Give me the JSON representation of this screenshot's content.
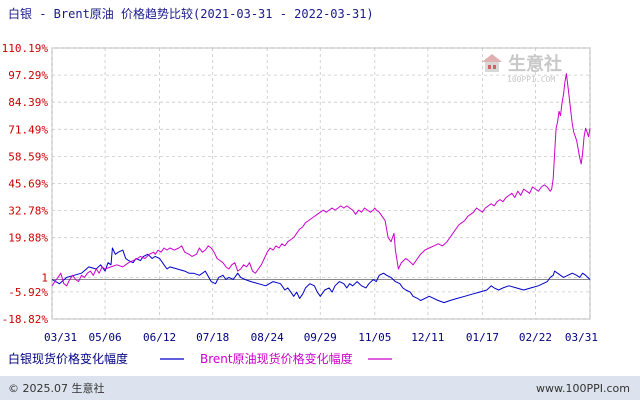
{
  "header": {
    "title": "白银 - Brent原油 价格趋势比较(2021-03-31 - 2022-03-31)"
  },
  "watermark": {
    "name": "生意社",
    "url": "100PPI.COM"
  },
  "footer": {
    "copyright": "© 2025.07 生意社",
    "site": "www.100PPI.com"
  },
  "colors": {
    "silver": "#0000cc",
    "brent": "#cc00cc",
    "axis_labels": "#cc0000",
    "date_labels": "#000080",
    "grid": "#c8c8c8",
    "baseline": "#888888",
    "footer_bar": "#dde3ee"
  },
  "chart_data": {
    "type": "line",
    "title": "白银 - Brent原油 价格趋势比较(2021-03-31 - 2022-03-31)",
    "ylim": [
      -18.82,
      110.19
    ],
    "yticks": [
      "110.19%",
      "97.29%",
      "84.39%",
      "71.49%",
      "58.59%",
      "45.69%",
      "32.78%",
      "19.88%",
      "1",
      "-5.92%",
      "-18.82%"
    ],
    "ytick_values": [
      110.19,
      97.29,
      84.39,
      71.49,
      58.59,
      45.69,
      32.78,
      19.88,
      1,
      -5.92,
      -18.82
    ],
    "xticks": [
      "03/31",
      "05/06",
      "06/12",
      "07/18",
      "08/24",
      "09/29",
      "11/05",
      "12/11",
      "01/17",
      "02/22",
      "03/31"
    ],
    "xticks_day": [
      0,
      36,
      73,
      109,
      146,
      182,
      219,
      255,
      292,
      328,
      365
    ],
    "grid": true,
    "legend_position": "bottom",
    "series": [
      {
        "name": "白银现货价格变化幅度",
        "color": "#0000cc",
        "points": [
          [
            0,
            0
          ],
          [
            5,
            -2
          ],
          [
            10,
            1
          ],
          [
            15,
            2
          ],
          [
            20,
            3
          ],
          [
            25,
            6
          ],
          [
            30,
            5
          ],
          [
            33,
            7
          ],
          [
            36,
            4
          ],
          [
            38,
            8
          ],
          [
            40,
            7
          ],
          [
            41,
            15
          ],
          [
            43,
            12
          ],
          [
            45,
            13
          ],
          [
            48,
            14
          ],
          [
            50,
            10
          ],
          [
            52,
            9
          ],
          [
            55,
            8
          ],
          [
            57,
            10
          ],
          [
            60,
            9
          ],
          [
            62,
            11
          ],
          [
            65,
            12
          ],
          [
            68,
            10
          ],
          [
            70,
            11
          ],
          [
            73,
            10
          ],
          [
            76,
            7
          ],
          [
            78,
            5
          ],
          [
            80,
            6
          ],
          [
            85,
            5
          ],
          [
            90,
            4
          ],
          [
            93,
            3
          ],
          [
            96,
            3
          ],
          [
            100,
            2
          ],
          [
            104,
            4
          ],
          [
            108,
            -1
          ],
          [
            111,
            -2
          ],
          [
            113,
            1
          ],
          [
            116,
            2
          ],
          [
            118,
            0
          ],
          [
            120,
            1
          ],
          [
            123,
            0
          ],
          [
            126,
            3
          ],
          [
            128,
            1
          ],
          [
            131,
            0
          ],
          [
            135,
            -1
          ],
          [
            140,
            -2
          ],
          [
            145,
            -3
          ],
          [
            150,
            -1
          ],
          [
            155,
            -2
          ],
          [
            158,
            -5
          ],
          [
            160,
            -4
          ],
          [
            162,
            -6
          ],
          [
            164,
            -8
          ],
          [
            166,
            -6
          ],
          [
            168,
            -9
          ],
          [
            170,
            -7
          ],
          [
            172,
            -4
          ],
          [
            175,
            -2
          ],
          [
            178,
            -3
          ],
          [
            180,
            -6
          ],
          [
            182,
            -8
          ],
          [
            185,
            -5
          ],
          [
            188,
            -4
          ],
          [
            190,
            -6
          ],
          [
            192,
            -3
          ],
          [
            195,
            -1
          ],
          [
            198,
            -2
          ],
          [
            200,
            -4
          ],
          [
            202,
            -2
          ],
          [
            204,
            -3
          ],
          [
            207,
            -1
          ],
          [
            210,
            -3
          ],
          [
            213,
            -4
          ],
          [
            215,
            -2
          ],
          [
            218,
            0
          ],
          [
            220,
            -1
          ],
          [
            222,
            2
          ],
          [
            225,
            3
          ],
          [
            227,
            2
          ],
          [
            230,
            1
          ],
          [
            233,
            -1
          ],
          [
            236,
            -2
          ],
          [
            238,
            -4
          ],
          [
            240,
            -5
          ],
          [
            243,
            -6
          ],
          [
            245,
            -8
          ],
          [
            248,
            -9
          ],
          [
            250,
            -10
          ],
          [
            253,
            -9
          ],
          [
            256,
            -8
          ],
          [
            259,
            -9
          ],
          [
            262,
            -10
          ],
          [
            266,
            -11
          ],
          [
            270,
            -10
          ],
          [
            275,
            -9
          ],
          [
            280,
            -8
          ],
          [
            285,
            -7
          ],
          [
            290,
            -6
          ],
          [
            295,
            -5
          ],
          [
            298,
            -3
          ],
          [
            300,
            -4
          ],
          [
            303,
            -5
          ],
          [
            306,
            -4
          ],
          [
            310,
            -3
          ],
          [
            315,
            -4
          ],
          [
            320,
            -5
          ],
          [
            325,
            -4
          ],
          [
            330,
            -3
          ],
          [
            333,
            -2
          ],
          [
            336,
            -1
          ],
          [
            338,
            1
          ],
          [
            340,
            2
          ],
          [
            341,
            4
          ],
          [
            343,
            3
          ],
          [
            345,
            2
          ],
          [
            347,
            1
          ],
          [
            350,
            2
          ],
          [
            353,
            3
          ],
          [
            356,
            2
          ],
          [
            358,
            1
          ],
          [
            360,
            3
          ],
          [
            362,
            2
          ],
          [
            365,
            0
          ]
        ]
      },
      {
        "name": "Brent原油现货价格变化幅度",
        "color": "#cc00cc",
        "points": [
          [
            0,
            -3
          ],
          [
            2,
            -1
          ],
          [
            4,
            1
          ],
          [
            6,
            3
          ],
          [
            8,
            -2
          ],
          [
            10,
            -3
          ],
          [
            12,
            0
          ],
          [
            14,
            2
          ],
          [
            16,
            0
          ],
          [
            18,
            -1
          ],
          [
            20,
            2
          ],
          [
            22,
            1
          ],
          [
            24,
            3
          ],
          [
            26,
            4
          ],
          [
            28,
            2
          ],
          [
            30,
            5
          ],
          [
            32,
            3
          ],
          [
            34,
            6
          ],
          [
            36,
            5
          ],
          [
            40,
            6
          ],
          [
            44,
            7
          ],
          [
            48,
            6
          ],
          [
            52,
            8
          ],
          [
            55,
            9
          ],
          [
            58,
            10
          ],
          [
            60,
            11
          ],
          [
            63,
            10
          ],
          [
            66,
            12
          ],
          [
            69,
            13
          ],
          [
            70,
            12
          ],
          [
            72,
            14
          ],
          [
            74,
            13
          ],
          [
            76,
            15
          ],
          [
            78,
            14
          ],
          [
            80,
            15
          ],
          [
            83,
            14
          ],
          [
            86,
            15
          ],
          [
            88,
            16
          ],
          [
            90,
            13
          ],
          [
            93,
            12
          ],
          [
            95,
            11
          ],
          [
            98,
            12
          ],
          [
            100,
            15
          ],
          [
            102,
            13
          ],
          [
            104,
            14
          ],
          [
            106,
            16
          ],
          [
            108,
            15
          ],
          [
            110,
            13
          ],
          [
            112,
            10
          ],
          [
            114,
            9
          ],
          [
            116,
            8
          ],
          [
            118,
            6
          ],
          [
            120,
            5
          ],
          [
            122,
            7
          ],
          [
            124,
            8
          ],
          [
            126,
            4
          ],
          [
            128,
            5
          ],
          [
            130,
            7
          ],
          [
            132,
            6
          ],
          [
            134,
            8
          ],
          [
            136,
            4
          ],
          [
            138,
            3
          ],
          [
            140,
            5
          ],
          [
            142,
            7
          ],
          [
            144,
            10
          ],
          [
            146,
            13
          ],
          [
            148,
            15
          ],
          [
            150,
            14
          ],
          [
            152,
            16
          ],
          [
            154,
            15
          ],
          [
            156,
            17
          ],
          [
            158,
            16
          ],
          [
            160,
            18
          ],
          [
            162,
            19
          ],
          [
            164,
            20
          ],
          [
            166,
            22
          ],
          [
            168,
            24
          ],
          [
            170,
            25
          ],
          [
            172,
            27
          ],
          [
            174,
            28
          ],
          [
            176,
            29
          ],
          [
            178,
            30
          ],
          [
            180,
            31
          ],
          [
            182,
            32
          ],
          [
            184,
            33
          ],
          [
            186,
            32
          ],
          [
            188,
            33
          ],
          [
            190,
            34
          ],
          [
            192,
            33
          ],
          [
            194,
            34
          ],
          [
            196,
            35
          ],
          [
            198,
            34
          ],
          [
            200,
            35
          ],
          [
            202,
            34
          ],
          [
            204,
            33
          ],
          [
            206,
            31
          ],
          [
            208,
            33
          ],
          [
            210,
            32
          ],
          [
            212,
            34
          ],
          [
            214,
            33
          ],
          [
            216,
            32
          ],
          [
            218,
            33
          ],
          [
            219,
            34
          ],
          [
            220,
            33
          ],
          [
            222,
            32
          ],
          [
            224,
            30
          ],
          [
            226,
            28
          ],
          [
            228,
            20
          ],
          [
            230,
            18
          ],
          [
            232,
            22
          ],
          [
            233,
            14
          ],
          [
            235,
            5
          ],
          [
            237,
            8
          ],
          [
            240,
            10
          ],
          [
            242,
            9
          ],
          [
            245,
            7
          ],
          [
            248,
            10
          ],
          [
            250,
            12
          ],
          [
            253,
            14
          ],
          [
            256,
            15
          ],
          [
            259,
            16
          ],
          [
            262,
            17
          ],
          [
            265,
            16
          ],
          [
            268,
            18
          ],
          [
            270,
            20
          ],
          [
            272,
            22
          ],
          [
            274,
            24
          ],
          [
            276,
            26
          ],
          [
            278,
            27
          ],
          [
            280,
            28
          ],
          [
            282,
            30
          ],
          [
            284,
            31
          ],
          [
            286,
            32
          ],
          [
            288,
            34
          ],
          [
            290,
            33
          ],
          [
            292,
            32
          ],
          [
            294,
            34
          ],
          [
            296,
            35
          ],
          [
            298,
            36
          ],
          [
            300,
            35
          ],
          [
            302,
            37
          ],
          [
            304,
            38
          ],
          [
            306,
            37
          ],
          [
            308,
            39
          ],
          [
            310,
            40
          ],
          [
            312,
            41
          ],
          [
            314,
            39
          ],
          [
            316,
            42
          ],
          [
            318,
            40
          ],
          [
            320,
            43
          ],
          [
            322,
            42
          ],
          [
            324,
            41
          ],
          [
            326,
            44
          ],
          [
            328,
            43
          ],
          [
            330,
            42
          ],
          [
            332,
            44
          ],
          [
            334,
            45
          ],
          [
            336,
            44
          ],
          [
            338,
            42
          ],
          [
            339,
            43
          ],
          [
            340,
            48
          ],
          [
            341,
            60
          ],
          [
            342,
            72
          ],
          [
            343,
            75
          ],
          [
            344,
            80
          ],
          [
            345,
            78
          ],
          [
            346,
            84
          ],
          [
            347,
            88
          ],
          [
            348,
            94
          ],
          [
            349,
            98
          ],
          [
            350,
            92
          ],
          [
            351,
            86
          ],
          [
            352,
            80
          ],
          [
            353,
            74
          ],
          [
            354,
            70
          ],
          [
            355,
            68
          ],
          [
            356,
            66
          ],
          [
            357,
            62
          ],
          [
            358,
            58
          ],
          [
            359,
            55
          ],
          [
            360,
            60
          ],
          [
            361,
            68
          ],
          [
            362,
            72
          ],
          [
            363,
            70
          ],
          [
            364,
            68
          ],
          [
            365,
            72
          ]
        ]
      }
    ]
  }
}
